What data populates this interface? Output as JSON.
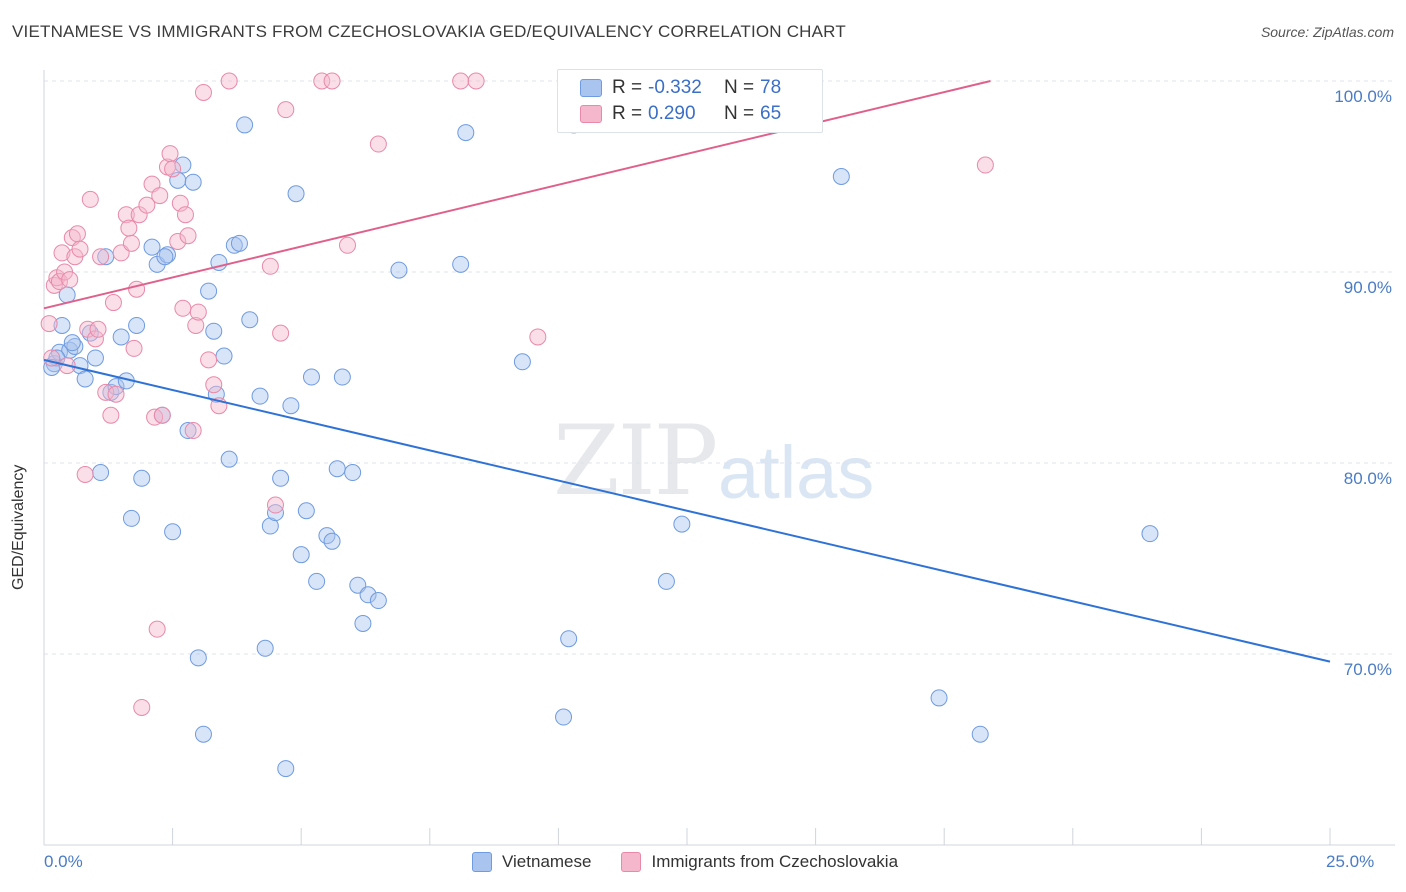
{
  "title": "VIETNAMESE VS IMMIGRANTS FROM CZECHOSLOVAKIA GED/EQUIVALENCY CORRELATION CHART",
  "source": "Source: ZipAtlas.com",
  "watermark": {
    "part1": "ZIP",
    "part2": "atlas"
  },
  "legend": {
    "rows": [
      {
        "r_label": "R =",
        "r_value": "-0.332",
        "n_label": "N =",
        "n_value": "78"
      },
      {
        "r_label": "R =",
        "r_value": "0.290",
        "n_label": "N =",
        "n_value": "65"
      }
    ]
  },
  "bottom_legend": [
    "Vietnamese",
    "Immigrants from Czechoslovakia"
  ],
  "colors": {
    "blue_fill": "#a9c4ee",
    "blue_stroke": "#6f9be0",
    "blue_line": "#2f72d6",
    "pink_fill": "#f5b7cb",
    "pink_stroke": "#e889a9",
    "pink_line": "#e0608c",
    "grid": "#dfe3ea",
    "tick_text": "#4a7cc4"
  },
  "chart_data": {
    "type": "scatter",
    "title": "VIETNAMESE VS IMMIGRANTS FROM CZECHOSLOVAKIA GED/EQUIVALENCY CORRELATION CHART",
    "xlabel": "",
    "ylabel": "GED/Equivalency",
    "xlim": [
      0,
      25
    ],
    "ylim": [
      60,
      101
    ],
    "x_tick_labels": [
      "0.0%",
      "25.0%"
    ],
    "y_ticks": [
      70,
      80,
      90,
      100
    ],
    "y_tick_labels": [
      "70.0%",
      "80.0%",
      "90.0%",
      "100.0%"
    ],
    "grid": true,
    "legend_position": "top-center",
    "series": [
      {
        "name": "Vietnamese",
        "trend": {
          "x": [
            0,
            25
          ],
          "y": [
            85.4,
            69.6
          ]
        },
        "points": [
          [
            0.2,
            85.2
          ],
          [
            0.3,
            85.8
          ],
          [
            0.35,
            87.2
          ],
          [
            0.45,
            88.8
          ],
          [
            0.5,
            85.9
          ],
          [
            0.6,
            86.1
          ],
          [
            0.7,
            85.1
          ],
          [
            0.8,
            84.4
          ],
          [
            0.9,
            86.8
          ],
          [
            1.0,
            85.5
          ],
          [
            1.2,
            90.8
          ],
          [
            1.3,
            83.7
          ],
          [
            1.4,
            84.0
          ],
          [
            1.5,
            86.6
          ],
          [
            1.6,
            84.3
          ],
          [
            1.8,
            87.2
          ],
          [
            1.9,
            79.2
          ],
          [
            2.1,
            91.3
          ],
          [
            2.2,
            90.4
          ],
          [
            2.3,
            82.5
          ],
          [
            2.4,
            90.9
          ],
          [
            2.5,
            76.4
          ],
          [
            2.6,
            94.8
          ],
          [
            2.7,
            95.6
          ],
          [
            2.8,
            81.7
          ],
          [
            2.9,
            94.7
          ],
          [
            3.0,
            69.8
          ],
          [
            3.1,
            65.8
          ],
          [
            3.2,
            89.0
          ],
          [
            3.3,
            86.9
          ],
          [
            3.35,
            83.6
          ],
          [
            3.4,
            90.5
          ],
          [
            3.5,
            85.6
          ],
          [
            3.6,
            80.2
          ],
          [
            3.7,
            91.4
          ],
          [
            3.8,
            91.5
          ],
          [
            3.9,
            97.7
          ],
          [
            4.0,
            87.5
          ],
          [
            4.2,
            83.5
          ],
          [
            4.3,
            70.3
          ],
          [
            4.4,
            76.7
          ],
          [
            4.5,
            77.4
          ],
          [
            4.6,
            79.2
          ],
          [
            4.7,
            64.0
          ],
          [
            4.8,
            83.0
          ],
          [
            4.9,
            94.1
          ],
          [
            5.0,
            75.2
          ],
          [
            5.1,
            77.5
          ],
          [
            5.2,
            84.5
          ],
          [
            5.3,
            73.8
          ],
          [
            5.5,
            76.2
          ],
          [
            5.6,
            75.9
          ],
          [
            5.7,
            79.7
          ],
          [
            5.8,
            84.5
          ],
          [
            6.0,
            79.5
          ],
          [
            6.1,
            73.6
          ],
          [
            6.2,
            71.6
          ],
          [
            6.3,
            73.1
          ],
          [
            6.5,
            72.8
          ],
          [
            6.9,
            90.1
          ],
          [
            8.1,
            90.4
          ],
          [
            8.2,
            97.3
          ],
          [
            9.3,
            85.3
          ],
          [
            10.1,
            66.7
          ],
          [
            10.2,
            70.8
          ],
          [
            10.3,
            97.7
          ],
          [
            12.1,
            73.8
          ],
          [
            12.4,
            76.8
          ],
          [
            15.5,
            95.0
          ],
          [
            17.4,
            67.7
          ],
          [
            18.2,
            65.8
          ],
          [
            21.5,
            76.3
          ],
          [
            0.25,
            85.5
          ],
          [
            1.1,
            79.5
          ],
          [
            1.7,
            77.1
          ],
          [
            0.55,
            86.3
          ],
          [
            2.35,
            90.8
          ],
          [
            0.15,
            85.0
          ]
        ]
      },
      {
        "name": "Immigrants from Czechoslovakia",
        "trend": {
          "x": [
            0,
            18.4
          ],
          "y": [
            88.1,
            100.0
          ]
        },
        "points": [
          [
            0.1,
            87.3
          ],
          [
            0.15,
            85.5
          ],
          [
            0.2,
            89.3
          ],
          [
            0.25,
            89.7
          ],
          [
            0.3,
            89.5
          ],
          [
            0.35,
            91.0
          ],
          [
            0.4,
            90.0
          ],
          [
            0.5,
            89.6
          ],
          [
            0.55,
            91.8
          ],
          [
            0.6,
            90.8
          ],
          [
            0.65,
            92.0
          ],
          [
            0.7,
            91.2
          ],
          [
            0.8,
            79.4
          ],
          [
            0.85,
            87.0
          ],
          [
            0.9,
            93.8
          ],
          [
            1.0,
            86.5
          ],
          [
            1.05,
            87.0
          ],
          [
            1.1,
            90.8
          ],
          [
            1.2,
            83.7
          ],
          [
            1.3,
            82.5
          ],
          [
            1.35,
            88.4
          ],
          [
            1.4,
            83.6
          ],
          [
            1.5,
            91.0
          ],
          [
            1.6,
            93.0
          ],
          [
            1.65,
            92.3
          ],
          [
            1.7,
            91.5
          ],
          [
            1.75,
            86.0
          ],
          [
            1.8,
            89.1
          ],
          [
            1.85,
            93.0
          ],
          [
            1.9,
            67.2
          ],
          [
            2.0,
            93.5
          ],
          [
            2.1,
            94.6
          ],
          [
            2.15,
            82.4
          ],
          [
            2.2,
            71.3
          ],
          [
            2.25,
            94.0
          ],
          [
            2.3,
            82.5
          ],
          [
            2.4,
            95.5
          ],
          [
            2.45,
            96.2
          ],
          [
            2.5,
            95.4
          ],
          [
            2.6,
            91.6
          ],
          [
            2.65,
            93.6
          ],
          [
            2.7,
            88.1
          ],
          [
            2.75,
            93.0
          ],
          [
            2.8,
            91.9
          ],
          [
            2.9,
            81.7
          ],
          [
            2.95,
            87.2
          ],
          [
            3.0,
            87.9
          ],
          [
            3.1,
            99.4
          ],
          [
            3.2,
            85.4
          ],
          [
            3.3,
            84.1
          ],
          [
            3.4,
            83.0
          ],
          [
            3.6,
            100.0
          ],
          [
            4.4,
            90.3
          ],
          [
            4.5,
            77.8
          ],
          [
            4.6,
            86.8
          ],
          [
            4.7,
            98.5
          ],
          [
            5.4,
            100.0
          ],
          [
            5.6,
            100.0
          ],
          [
            5.9,
            91.4
          ],
          [
            6.5,
            96.7
          ],
          [
            8.1,
            100.0
          ],
          [
            8.4,
            100.0
          ],
          [
            9.6,
            86.6
          ],
          [
            18.3,
            95.6
          ],
          [
            0.45,
            85.1
          ]
        ]
      }
    ]
  }
}
